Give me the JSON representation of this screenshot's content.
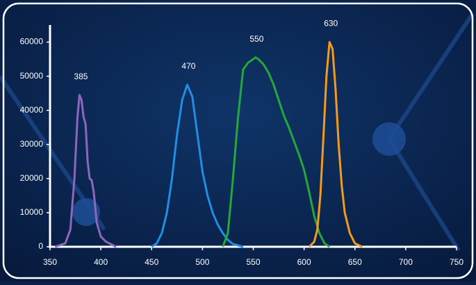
{
  "chart_data": {
    "type": "line",
    "xlim": [
      350,
      750
    ],
    "xticks": [
      350,
      400,
      450,
      500,
      550,
      600,
      650,
      700,
      750
    ],
    "ylim": [
      0,
      65000
    ],
    "yticks": [
      0,
      10000,
      20000,
      30000,
      40000,
      50000,
      60000
    ],
    "series": [
      {
        "name": "385",
        "color": "#8b68bd",
        "x": [
          355,
          365,
          370,
          374,
          377,
          379,
          381,
          383,
          385,
          387,
          389,
          391,
          393,
          396,
          400,
          405,
          415
        ],
        "values": [
          0,
          1000,
          5000,
          20000,
          38000,
          44500,
          43000,
          38000,
          36000,
          25000,
          20000,
          19500,
          16000,
          7000,
          3000,
          1500,
          0
        ]
      },
      {
        "name": "470",
        "color": "#1f8fe3",
        "x": [
          450,
          455,
          460,
          465,
          470,
          475,
          480,
          485,
          490,
          495,
          500,
          505,
          510,
          515,
          520,
          525,
          530,
          540
        ],
        "values": [
          0,
          1000,
          4000,
          10000,
          20000,
          33000,
          43000,
          47500,
          44000,
          33000,
          22000,
          15000,
          10000,
          6500,
          4000,
          2000,
          800,
          0
        ]
      },
      {
        "name": "550",
        "color": "#23a83a",
        "x": [
          520,
          525,
          530,
          535,
          540,
          545,
          550,
          552,
          555,
          560,
          565,
          570,
          575,
          580,
          585,
          590,
          595,
          600,
          605,
          610,
          615,
          620,
          625
        ],
        "values": [
          0,
          4000,
          20000,
          38000,
          52000,
          54000,
          55000,
          55500,
          55000,
          53500,
          51000,
          47500,
          43000,
          38500,
          35000,
          31000,
          27000,
          22500,
          16000,
          9000,
          4000,
          1000,
          0
        ]
      },
      {
        "name": "630",
        "color": "#f49b1f",
        "x": [
          605,
          610,
          613,
          616,
          619,
          622,
          625,
          628,
          631,
          634,
          637,
          640,
          645,
          650,
          657
        ],
        "values": [
          0,
          1500,
          5000,
          15000,
          32000,
          50000,
          60000,
          58000,
          46000,
          30000,
          18000,
          10000,
          4000,
          1000,
          0
        ]
      }
    ]
  }
}
